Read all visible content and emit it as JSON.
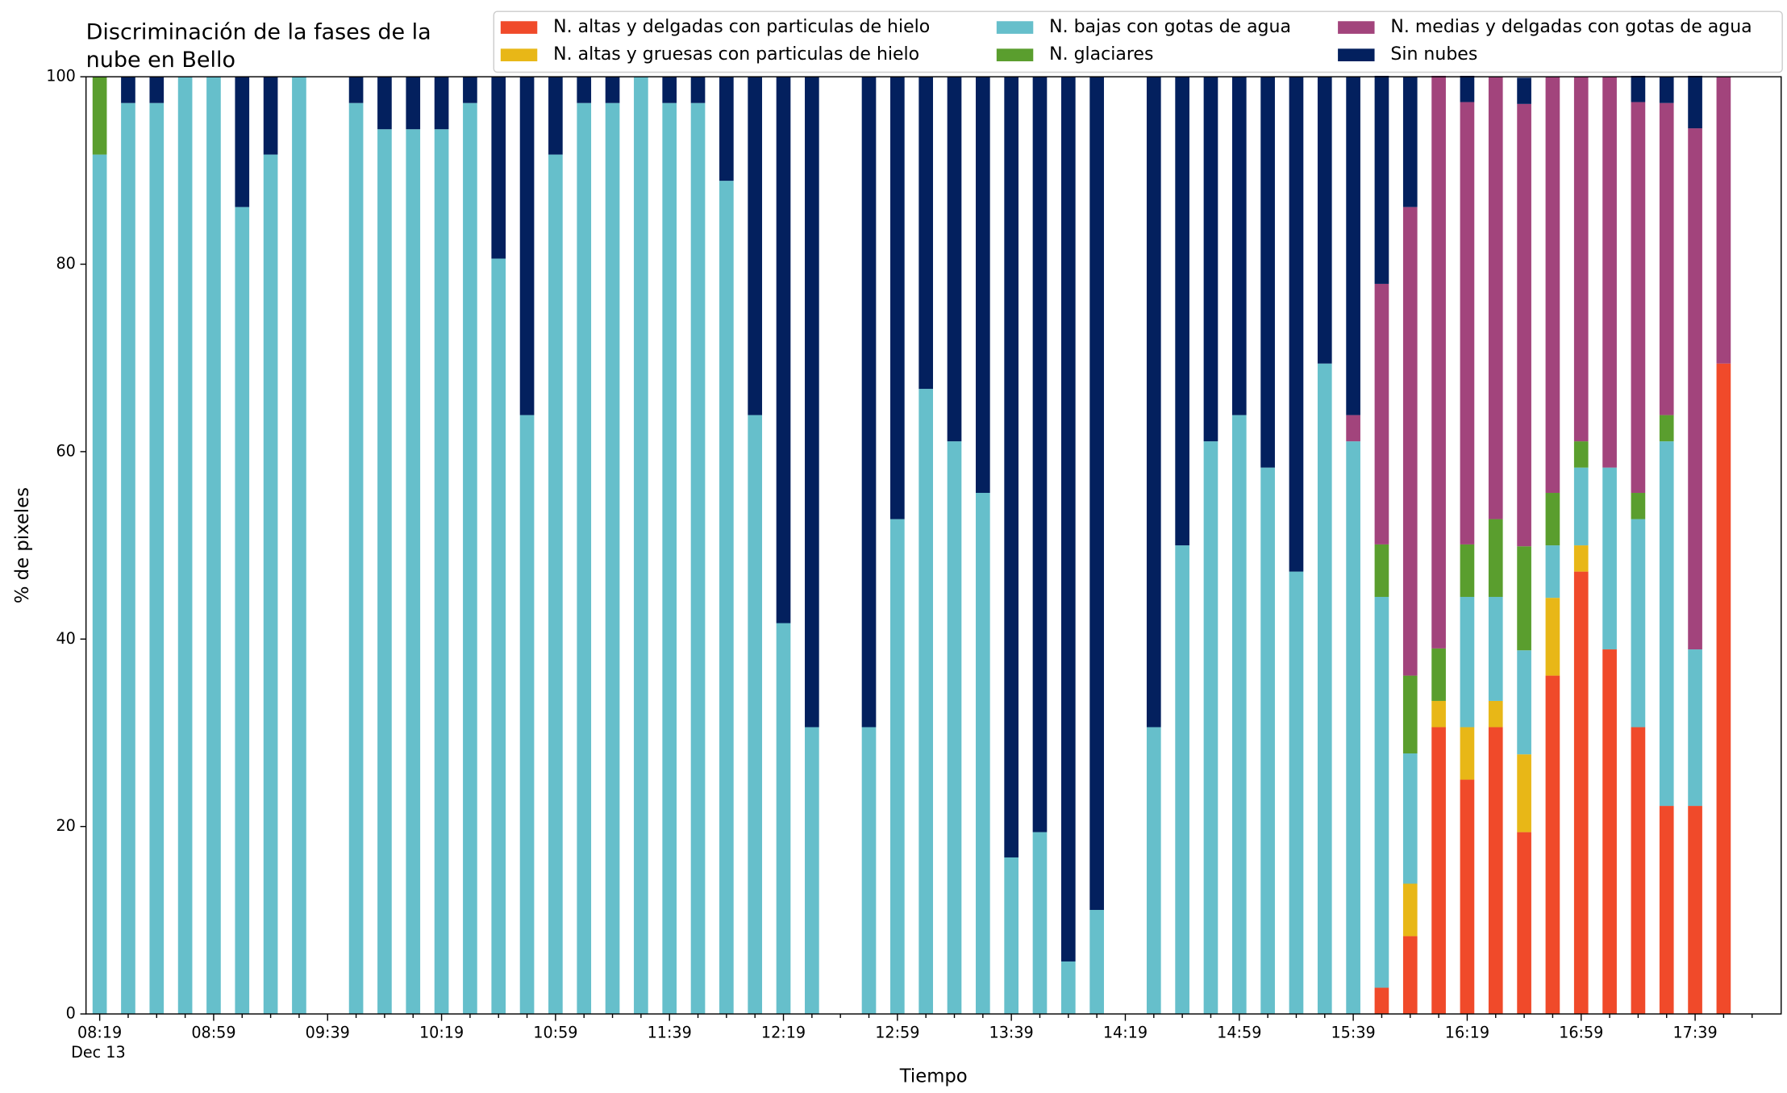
{
  "chart_data": {
    "type": "bar",
    "stacked": true,
    "title": [
      "Discriminación de la fases de la",
      "nube en Bello"
    ],
    "xlabel": "Tiempo",
    "ylabel": "% de pixeles",
    "date_label": "Dec 13",
    "legend": "top-right",
    "ylim": [
      0,
      100
    ],
    "yticks": [
      0,
      20,
      40,
      60,
      80,
      100
    ],
    "categories": [
      "08:19",
      null,
      null,
      null,
      "08:59",
      null,
      null,
      null,
      "09:39",
      null,
      null,
      null,
      "10:19",
      null,
      null,
      null,
      "10:59",
      null,
      null,
      null,
      "11:39",
      null,
      null,
      null,
      "12:19",
      null,
      null,
      null,
      "12:59",
      null,
      null,
      null,
      "13:39",
      null,
      null,
      null,
      "14:19",
      null,
      null,
      null,
      "14:59",
      null,
      null,
      null,
      "15:39",
      null,
      null,
      null,
      "16:19",
      null,
      null,
      null,
      "16:59",
      null,
      null,
      null,
      "17:39",
      null,
      null
    ],
    "series": [
      {
        "name": "N. altas y delgadas con particulas de hielo",
        "color": "#f04a2a",
        "values": [
          0,
          0,
          0,
          0,
          0,
          0,
          0,
          0,
          null,
          0,
          0,
          0,
          0,
          0,
          0,
          0,
          0,
          0,
          0,
          0,
          0,
          0,
          0,
          0,
          0,
          0,
          null,
          0,
          0,
          0,
          0,
          0,
          0,
          0,
          0,
          0,
          null,
          0,
          0,
          0,
          0,
          0,
          0,
          0,
          0,
          2.8,
          8.3,
          30.6,
          25,
          30.6,
          19.4,
          36.1,
          47.2,
          38.9,
          30.6,
          22.2,
          22.2,
          69.4,
          null
        ]
      },
      {
        "name": "N. altas y gruesas con particulas de hielo",
        "color": "#e8b717",
        "values": [
          0,
          0,
          0,
          0,
          0,
          0,
          0,
          0,
          null,
          0,
          0,
          0,
          0,
          0,
          0,
          0,
          0,
          0,
          0,
          0,
          0,
          0,
          0,
          0,
          0,
          0,
          null,
          0,
          0,
          0,
          0,
          0,
          0,
          0,
          0,
          0,
          null,
          0,
          0,
          0,
          0,
          0,
          0,
          0,
          0,
          0,
          5.6,
          2.8,
          5.6,
          2.8,
          8.3,
          8.3,
          2.8,
          0,
          0,
          0,
          0,
          0,
          null
        ]
      },
      {
        "name": "N. bajas con gotas de agua",
        "color": "#66bfcb",
        "values": [
          91.7,
          97.2,
          97.2,
          100,
          100,
          86.1,
          91.7,
          100,
          null,
          97.2,
          94.4,
          94.4,
          94.4,
          97.2,
          80.6,
          63.9,
          91.7,
          97.2,
          97.2,
          100,
          97.2,
          97.2,
          88.9,
          63.9,
          41.7,
          30.6,
          null,
          30.6,
          52.8,
          66.7,
          61.1,
          55.6,
          16.7,
          19.4,
          5.6,
          11.1,
          null,
          30.6,
          50,
          61.1,
          63.9,
          58.3,
          47.2,
          69.4,
          61.1,
          41.7,
          13.9,
          0,
          13.9,
          11.1,
          11.1,
          5.6,
          8.3,
          19.4,
          22.2,
          38.9,
          16.7,
          0,
          null
        ]
      },
      {
        "name": "N. glaciares",
        "color": "#5a9e2e",
        "values": [
          8.3,
          0,
          0,
          0,
          0,
          0,
          0,
          0,
          null,
          0,
          0,
          0,
          0,
          0,
          0,
          0,
          0,
          0,
          0,
          0,
          0,
          0,
          0,
          0,
          0,
          0,
          null,
          0,
          0,
          0,
          0,
          0,
          0,
          0,
          0,
          0,
          null,
          0,
          0,
          0,
          0,
          0,
          0,
          0,
          0,
          5.6,
          8.3,
          5.6,
          5.6,
          8.3,
          11.1,
          5.6,
          2.8,
          0,
          2.8,
          2.8,
          0,
          0,
          null
        ]
      },
      {
        "name": "N. medias y delgadas con gotas de agua",
        "color": "#a2447c",
        "values": [
          0,
          0,
          0,
          0,
          0,
          0,
          0,
          0,
          null,
          0,
          0,
          0,
          0,
          0,
          0,
          0,
          0,
          0,
          0,
          0,
          0,
          0,
          0,
          0,
          0,
          0,
          null,
          0,
          0,
          0,
          0,
          0,
          0,
          0,
          0,
          0,
          null,
          0,
          0,
          0,
          0,
          0,
          0,
          0,
          2.8,
          27.8,
          50,
          61.1,
          47.2,
          47.2,
          47.2,
          44.4,
          38.9,
          41.7,
          41.7,
          33.3,
          55.6,
          30.6,
          null
        ]
      },
      {
        "name": "Sin nubes",
        "color": "#03205e",
        "values": [
          0,
          2.8,
          2.8,
          0,
          0,
          13.9,
          8.3,
          0,
          null,
          2.8,
          5.6,
          5.6,
          5.6,
          2.8,
          19.4,
          36.1,
          8.3,
          2.8,
          2.8,
          0,
          2.8,
          2.8,
          11.1,
          36.1,
          58.3,
          69.4,
          null,
          69.4,
          47.2,
          33.3,
          38.9,
          44.4,
          83.3,
          80.6,
          94.4,
          88.9,
          null,
          69.4,
          50,
          38.9,
          36.1,
          41.7,
          52.8,
          30.6,
          36.1,
          22.2,
          13.9,
          0,
          2.8,
          0,
          2.8,
          0,
          0,
          0,
          2.8,
          2.8,
          5.6,
          0,
          null
        ]
      }
    ]
  }
}
